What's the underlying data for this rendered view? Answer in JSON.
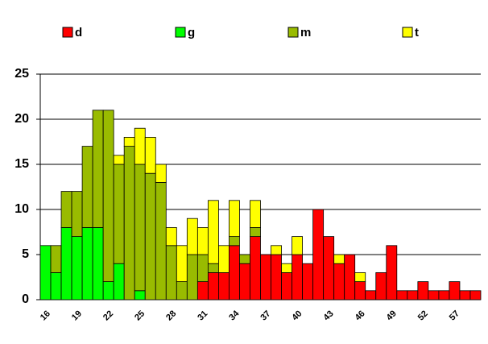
{
  "chart_data": {
    "type": "stacked_bar",
    "categories": [
      "16",
      null,
      null,
      "19",
      null,
      null,
      "22",
      null,
      null,
      "25",
      null,
      null,
      "28",
      null,
      null,
      "31",
      null,
      null,
      "34",
      null,
      null,
      "37",
      null,
      null,
      "40",
      null,
      null,
      "43",
      null,
      null,
      "46",
      null,
      null,
      "49",
      null,
      null,
      "52",
      null,
      null,
      "57",
      null,
      null
    ],
    "series": [
      {
        "name": "d",
        "color": "#ff0000",
        "values": [
          0,
          0,
          0,
          0,
          0,
          0,
          0,
          0,
          0,
          0,
          0,
          0,
          0,
          0,
          0,
          2,
          3,
          3,
          6,
          4,
          7,
          5,
          5,
          3,
          5,
          4,
          10,
          7,
          4,
          5,
          2,
          1,
          3,
          6,
          1,
          1,
          2,
          1,
          1,
          2,
          1,
          1
        ]
      },
      {
        "name": "g",
        "color": "#00ff00",
        "values": [
          6,
          3,
          8,
          7,
          8,
          8,
          2,
          4,
          0,
          1,
          0,
          0,
          0,
          0,
          0,
          0,
          0,
          0,
          0,
          0,
          0,
          0,
          0,
          0,
          0,
          0,
          0,
          0,
          0,
          0,
          0,
          0,
          0,
          0,
          0,
          0,
          0,
          0,
          0,
          0,
          0,
          0
        ]
      },
      {
        "name": "m",
        "color": "#99bb00",
        "values": [
          0,
          3,
          4,
          5,
          9,
          13,
          19,
          11,
          17,
          14,
          14,
          13,
          6,
          2,
          5,
          3,
          1,
          0,
          1,
          1,
          1,
          0,
          0,
          0,
          0,
          0,
          0,
          0,
          0,
          0,
          0,
          0,
          0,
          0,
          0,
          0,
          0,
          0,
          0,
          0,
          0,
          0
        ]
      },
      {
        "name": "t",
        "color": "#ffff00",
        "values": [
          0,
          0,
          0,
          0,
          0,
          0,
          0,
          1,
          1,
          4,
          4,
          2,
          2,
          4,
          4,
          3,
          7,
          3,
          4,
          0,
          3,
          0,
          1,
          1,
          2,
          0,
          0,
          0,
          1,
          0,
          1,
          0,
          0,
          0,
          0,
          0,
          0,
          0,
          0,
          0,
          0,
          0
        ]
      }
    ],
    "ylim": [
      0,
      25
    ],
    "yticks": [
      0,
      5,
      10,
      15,
      20,
      25
    ],
    "grid": true,
    "legend": "top"
  }
}
